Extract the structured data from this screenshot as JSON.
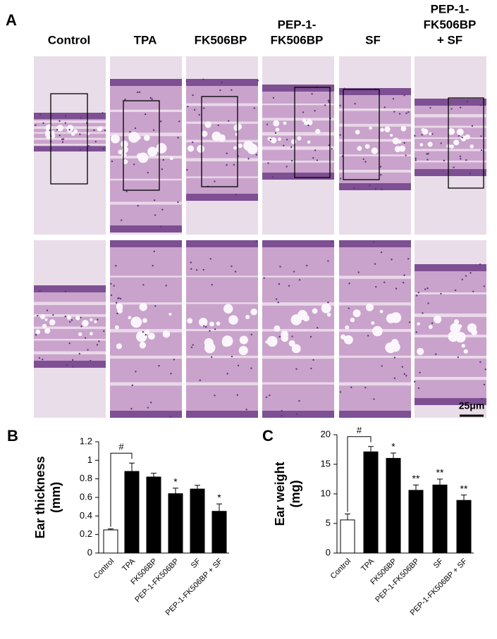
{
  "panel_a": {
    "label": "A",
    "columns": [
      [
        "Control"
      ],
      [
        "TPA"
      ],
      [
        "FK506BP"
      ],
      [
        "PEP-1-",
        "FK506BP"
      ],
      [
        "SF"
      ],
      [
        "PEP-1-",
        "FK506BP",
        "+ SF"
      ]
    ],
    "scale_bar": "25μm"
  },
  "chart_data": [
    {
      "type": "bar",
      "panel": "B",
      "ylabel": [
        "Ear thickness",
        "(mm)"
      ],
      "categories": [
        "Control",
        "TPA",
        "FK506BP",
        "PEP-1-FK506BP",
        "SF",
        "PEP-1-FK506BP + SF"
      ],
      "values": [
        0.25,
        0.88,
        0.82,
        0.64,
        0.69,
        0.45
      ],
      "error": [
        0.01,
        0.09,
        0.04,
        0.06,
        0.04,
        0.08
      ],
      "colors": [
        "#ffffff",
        "#000000",
        "#000000",
        "#000000",
        "#000000",
        "#000000"
      ],
      "significance": [
        null,
        null,
        null,
        "*",
        null,
        "*"
      ],
      "reference_mark": "#",
      "ylim": [
        0,
        1.2
      ],
      "yticks": [
        0,
        0.2,
        0.4,
        0.6,
        0.8,
        1,
        1.2
      ]
    },
    {
      "type": "bar",
      "panel": "C",
      "ylabel": [
        "Ear weight",
        "(mg)"
      ],
      "categories": [
        "Control",
        "TPA",
        "FK506BP",
        "PEP-1-FK506BP",
        "SF",
        "PEP-1-FK506BP + SF"
      ],
      "values": [
        5.6,
        17.1,
        16.0,
        10.6,
        11.5,
        8.9
      ],
      "error": [
        1.0,
        0.9,
        0.9,
        0.9,
        1.0,
        0.9
      ],
      "colors": [
        "#ffffff",
        "#000000",
        "#000000",
        "#000000",
        "#000000",
        "#000000"
      ],
      "significance": [
        null,
        null,
        "*",
        "**",
        "**",
        "**"
      ],
      "reference_mark": "#",
      "ylim": [
        0,
        20
      ],
      "yticks": [
        0,
        5,
        10,
        15,
        20
      ]
    }
  ]
}
